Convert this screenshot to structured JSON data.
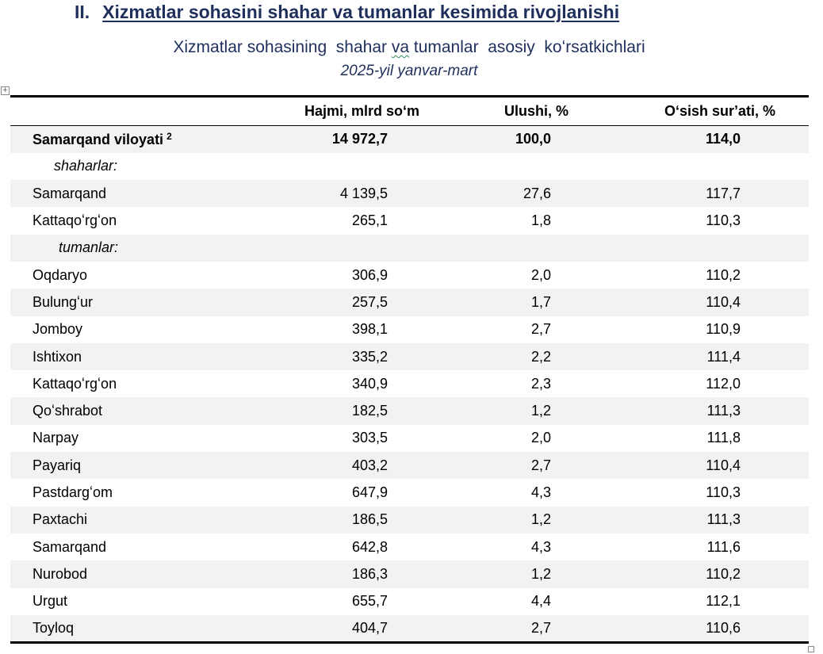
{
  "heading": {
    "number": "II.",
    "text": "Xizmatlar sohasini shahar va tumanlar kesimida rivojlanishi"
  },
  "subtitle": {
    "before": "Xizmatlar sohasining  shahar ",
    "marked": "va",
    "after": " tumanlar  asosiy  koʻrsatkichlari"
  },
  "period": "2025-yil yanvar-mart",
  "table": {
    "columns": [
      "",
      "Hajmi, mlrd soʻm",
      "Ulushi, %",
      "Oʻsish surʼati, %"
    ],
    "total": {
      "name": "Samarqand viloyati",
      "footnote": "2",
      "volume": "14 972,7",
      "share": "100,0",
      "growth": "114,0"
    },
    "section_cities": "shaharlar:",
    "cities": [
      {
        "name": "Samarqand",
        "volume": "4 139,5",
        "share": "27,6",
        "growth": "117,7"
      },
      {
        "name": "Kattaqoʻrgʻon",
        "volume": "265,1",
        "share": "1,8",
        "growth": "110,3"
      }
    ],
    "section_districts": "tumanlar:",
    "districts": [
      {
        "name": "Oqdaryo",
        "volume": "306,9",
        "share": "2,0",
        "growth": "110,2"
      },
      {
        "name": "Bulungʻur",
        "volume": "257,5",
        "share": "1,7",
        "growth": "110,4"
      },
      {
        "name": "Jomboy",
        "volume": "398,1",
        "share": "2,7",
        "growth": "110,9"
      },
      {
        "name": "Ishtixon",
        "volume": "335,2",
        "share": "2,2",
        "growth": "111,4"
      },
      {
        "name": "Kattaqoʻrgʻon",
        "volume": "340,9",
        "share": "2,3",
        "growth": "112,0"
      },
      {
        "name": "Qoʻshrabot",
        "volume": "182,5",
        "share": "1,2",
        "growth": "111,3"
      },
      {
        "name": "Narpay",
        "volume": "303,5",
        "share": "2,0",
        "growth": "111,8"
      },
      {
        "name": "Payariq",
        "volume": "403,2",
        "share": "2,7",
        "growth": "110,4"
      },
      {
        "name": "Pastdargʻom",
        "volume": "647,9",
        "share": "4,3",
        "growth": "110,3"
      },
      {
        "name": "Paxtachi",
        "volume": "186,5",
        "share": "1,2",
        "growth": "111,3"
      },
      {
        "name": "Samarqand",
        "volume": "642,8",
        "share": "4,3",
        "growth": "111,6"
      },
      {
        "name": "Nurobod",
        "volume": "186,3",
        "share": "1,2",
        "growth": "110,2"
      },
      {
        "name": "Urgut",
        "volume": "655,7",
        "share": "4,4",
        "growth": "112,1"
      },
      {
        "name": "Toyloq",
        "volume": "404,7",
        "share": "2,7",
        "growth": "110,6"
      }
    ]
  },
  "colors": {
    "heading": "#1f2f5c",
    "row_shade": "#f2f2f2"
  },
  "icons": {
    "table_anchor": "move-handle-icon",
    "table_resize": "resize-handle-icon"
  }
}
